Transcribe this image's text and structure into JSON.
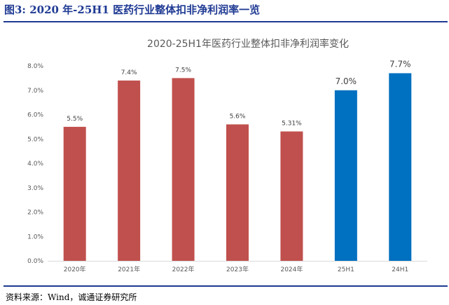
{
  "figure": {
    "caption": "图3:   2020 年-25H1 医药行业整体扣非净利润率一览",
    "source": "资料来源：Wind，诚通证券研究所"
  },
  "colors": {
    "accent": "#1f3a93",
    "bar_red": "#c0504d",
    "bar_blue": "#0070c0"
  },
  "chart_data": {
    "type": "bar",
    "title": "2020-25H1年医药行业整体扣非净利润率变化",
    "xlabel": "",
    "ylabel": "",
    "categories": [
      "2020年",
      "2021年",
      "2022年",
      "2023年",
      "2024年",
      "25H1",
      "24H1"
    ],
    "values": [
      5.5,
      7.4,
      7.5,
      5.6,
      5.31,
      7.0,
      7.7
    ],
    "value_labels": [
      "5.5%",
      "7.4%",
      "7.5%",
      "5.6%",
      "5.31%",
      "7.0%",
      "7.7%"
    ],
    "bar_colors": [
      "#c0504d",
      "#c0504d",
      "#c0504d",
      "#c0504d",
      "#c0504d",
      "#0070c0",
      "#0070c0"
    ],
    "ylim": [
      0,
      8
    ],
    "yticks": [
      0,
      1,
      2,
      3,
      4,
      5,
      6,
      7,
      8
    ],
    "ytick_labels": [
      "0.0%",
      "1.0%",
      "2.0%",
      "3.0%",
      "4.0%",
      "5.0%",
      "6.0%",
      "7.0%",
      "8.0%"
    ],
    "grid": false,
    "legend": "none"
  }
}
